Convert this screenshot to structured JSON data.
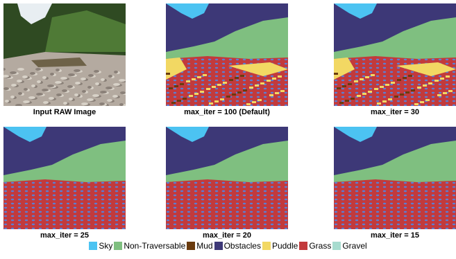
{
  "panels": [
    {
      "caption": "Input RAW Image",
      "kind": "raw"
    },
    {
      "caption": "max_iter = 100 (Default)",
      "kind": "puddle"
    },
    {
      "caption": "max_iter = 30",
      "kind": "puddle"
    },
    {
      "caption": "max_iter = 25",
      "kind": "grass"
    },
    {
      "caption": "max_iter = 20",
      "kind": "grass"
    },
    {
      "caption": "max_iter = 15",
      "kind": "grass"
    }
  ],
  "legend": [
    {
      "label": "Sky",
      "color": "#4cc3f2"
    },
    {
      "label": "Non-Traversable",
      "color": "#7fbf80"
    },
    {
      "label": "Mud",
      "color": "#6a3b0e"
    },
    {
      "label": "Obstacles",
      "color": "#3d3877"
    },
    {
      "label": "Puddle",
      "color": "#f2d863"
    },
    {
      "label": "Grass",
      "color": "#c23a3c"
    },
    {
      "label": "Gravel",
      "color": "#a7dccf"
    }
  ]
}
